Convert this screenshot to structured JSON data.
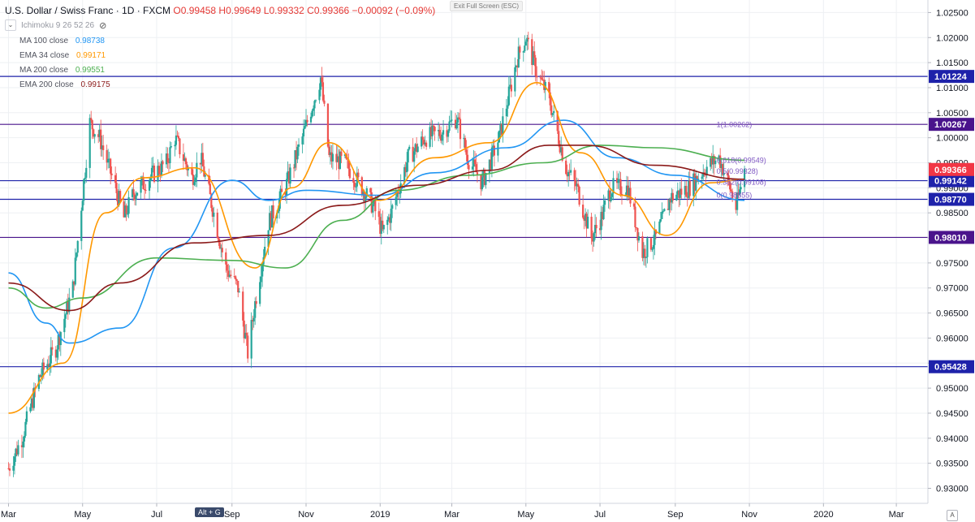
{
  "header": {
    "symbol": "U.S. Dollar / Swiss Franc · 1D · FXCM",
    "ohlc": "O0.99458 H0.99649 L0.99332 C0.99366 −0.00092 (−0.09%)"
  },
  "exit_fullscreen": "Exit Full Screen (ESC)",
  "shortcut_hint": "Alt + G",
  "auto_scale_label": "A",
  "indicators": {
    "ichimoku": {
      "label": "Ichimoku 9 26 52 26"
    },
    "ma100": {
      "label": "MA 100 close",
      "value": "0.98738",
      "color": "#2196f3"
    },
    "ema34": {
      "label": "EMA 34 close",
      "value": "0.99171",
      "color": "#ff9800"
    },
    "ma200": {
      "label": "MA 200 close",
      "value": "0.99551",
      "color": "#4caf50"
    },
    "ema200": {
      "label": "EMA 200 close",
      "value": "0.99175",
      "color": "#8b1a1a"
    }
  },
  "chart_data": {
    "type": "candlestick",
    "y_ticks": [
      0.93,
      0.935,
      0.94,
      0.945,
      0.95,
      0.955,
      0.96,
      0.965,
      0.97,
      0.975,
      0.98,
      0.985,
      0.99,
      0.995,
      1.0,
      1.005,
      1.01,
      1.015,
      1.02,
      1.025
    ],
    "y_range": [
      0.927,
      1.0275
    ],
    "x_ticks": [
      "Mar",
      "May",
      "Jul",
      "Sep",
      "Nov",
      "2019",
      "Mar",
      "May",
      "Jul",
      "Sep",
      "Nov",
      "2020",
      "Mar"
    ],
    "x_tick_dates": [
      "2018-03-01",
      "2018-05-01",
      "2018-07-01",
      "2018-09-01",
      "2018-11-01",
      "2019-01-01",
      "2019-03-01",
      "2019-05-01",
      "2019-07-01",
      "2019-09-01",
      "2019-11-01",
      "2020-01-01",
      "2020-03-01"
    ],
    "bull_color": "#26a69a",
    "bear_color": "#ef5350",
    "last_price": {
      "value": "0.99366",
      "color": "#f23645"
    },
    "horizontal_levels": [
      {
        "value": 1.01224,
        "label": "1.01224",
        "color": "#1e22aa"
      },
      {
        "value": 1.00267,
        "label": "1.00267",
        "color": "#4a148c"
      },
      {
        "value": 0.99142,
        "label": "0.99142",
        "color": "#1e22aa"
      },
      {
        "value": 0.9877,
        "label": "0.98770",
        "color": "#1e22aa"
      },
      {
        "value": 0.9801,
        "label": "0.98010",
        "color": "#4a148c"
      },
      {
        "value": 0.95428,
        "label": "0.95428",
        "color": "#1e22aa"
      }
    ],
    "fib_labels": [
      {
        "value": 1.00262,
        "text": "1(1.00262)"
      },
      {
        "value": 0.99549,
        "text": "0.618(0.99549)"
      },
      {
        "value": 0.99328,
        "text": "0.5(0.99328)"
      },
      {
        "value": 0.99108,
        "text": "0.382(0.99108)"
      },
      {
        "value": 0.98855,
        "text": "0(0.98855)"
      }
    ],
    "price_path": [
      [
        "2018-03-01",
        0.934
      ],
      [
        "2018-03-12",
        0.94
      ],
      [
        "2018-03-26",
        0.952
      ],
      [
        "2018-04-09",
        0.958
      ],
      [
        "2018-04-23",
        0.97
      ],
      [
        "2018-05-07",
        1.003
      ],
      [
        "2018-05-15",
        1.0
      ],
      [
        "2018-05-28",
        0.99
      ],
      [
        "2018-06-04",
        0.984
      ],
      [
        "2018-06-12",
        0.989
      ],
      [
        "2018-06-25",
        0.992
      ],
      [
        "2018-07-09",
        0.995
      ],
      [
        "2018-07-16",
        1.0
      ],
      [
        "2018-07-30",
        0.992
      ],
      [
        "2018-08-06",
        0.996
      ],
      [
        "2018-08-16",
        0.986
      ],
      [
        "2018-08-27",
        0.974
      ],
      [
        "2018-09-06",
        0.97
      ],
      [
        "2018-09-14",
        0.957
      ],
      [
        "2018-09-20",
        0.967
      ],
      [
        "2018-10-01",
        0.983
      ],
      [
        "2018-10-15",
        0.99
      ],
      [
        "2018-10-29",
        1.0
      ],
      [
        "2018-11-13",
        1.012
      ],
      [
        "2018-11-20",
        0.996
      ],
      [
        "2018-12-03",
        0.995
      ],
      [
        "2018-12-17",
        0.99
      ],
      [
        "2018-12-27",
        0.986
      ],
      [
        "2019-01-03",
        0.981
      ],
      [
        "2019-01-10",
        0.985
      ],
      [
        "2019-01-24",
        0.996
      ],
      [
        "2019-02-07",
        1.0
      ],
      [
        "2019-02-20",
        1.001
      ],
      [
        "2019-03-05",
        1.004
      ],
      [
        "2019-03-14",
        0.996
      ],
      [
        "2019-03-26",
        0.991
      ],
      [
        "2019-04-09",
        1.0
      ],
      [
        "2019-04-24",
        1.016
      ],
      [
        "2019-05-01",
        1.02
      ],
      [
        "2019-05-10",
        1.013
      ],
      [
        "2019-05-20",
        1.008
      ],
      [
        "2019-06-03",
        0.994
      ],
      [
        "2019-06-12",
        0.99
      ],
      [
        "2019-06-24",
        0.98
      ],
      [
        "2019-07-02",
        0.984
      ],
      [
        "2019-07-10",
        0.99
      ],
      [
        "2019-07-24",
        0.99
      ],
      [
        "2019-08-05",
        0.977
      ],
      [
        "2019-08-16",
        0.98
      ],
      [
        "2019-08-28",
        0.988
      ],
      [
        "2019-09-12",
        0.99
      ],
      [
        "2019-09-26",
        0.994
      ],
      [
        "2019-10-07",
        0.996
      ],
      [
        "2019-10-16",
        0.99
      ],
      [
        "2019-10-21",
        0.986
      ],
      [
        "2019-10-28",
        0.9937
      ]
    ],
    "ma_lines": [
      {
        "name": "MA 100 close",
        "color": "#2196f3",
        "points": [
          [
            "2018-03-01",
            0.973
          ],
          [
            "2018-04-01",
            0.963
          ],
          [
            "2018-04-20",
            0.959
          ],
          [
            "2018-06-01",
            0.962
          ],
          [
            "2018-07-15",
            0.978
          ],
          [
            "2018-09-01",
            0.9915
          ],
          [
            "2018-10-01",
            0.9875
          ],
          [
            "2018-11-01",
            0.9895
          ],
          [
            "2019-01-01",
            0.9885
          ],
          [
            "2019-02-15",
            0.993
          ],
          [
            "2019-04-15",
            0.998
          ],
          [
            "2019-06-01",
            1.0035
          ],
          [
            "2019-07-15",
            0.996
          ],
          [
            "2019-09-01",
            0.9925
          ],
          [
            "2019-10-28",
            0.9875
          ]
        ]
      },
      {
        "name": "EMA 34 close",
        "color": "#ff9800",
        "points": [
          [
            "2018-03-01",
            0.945
          ],
          [
            "2018-04-15",
            0.955
          ],
          [
            "2018-05-20",
            0.985
          ],
          [
            "2018-06-20",
            0.992
          ],
          [
            "2018-08-01",
            0.994
          ],
          [
            "2018-09-20",
            0.974
          ],
          [
            "2018-10-20",
            0.99
          ],
          [
            "2018-11-20",
            0.999
          ],
          [
            "2018-12-31",
            0.9875
          ],
          [
            "2019-02-15",
            0.996
          ],
          [
            "2019-04-01",
            0.999
          ],
          [
            "2019-05-10",
            1.011
          ],
          [
            "2019-06-15",
            0.997
          ],
          [
            "2019-07-20",
            0.9885
          ],
          [
            "2019-08-25",
            0.9805
          ],
          [
            "2019-09-30",
            0.991
          ],
          [
            "2019-10-28",
            0.9917
          ]
        ]
      },
      {
        "name": "MA 200 close",
        "color": "#4caf50",
        "points": [
          [
            "2018-03-01",
            0.97
          ],
          [
            "2018-04-01",
            0.966
          ],
          [
            "2018-05-01",
            0.968
          ],
          [
            "2018-07-01",
            0.976
          ],
          [
            "2018-09-01",
            0.9755
          ],
          [
            "2018-10-15",
            0.974
          ],
          [
            "2018-12-01",
            0.9835
          ],
          [
            "2019-01-15",
            0.9895
          ],
          [
            "2019-03-15",
            0.9925
          ],
          [
            "2019-05-15",
            0.995
          ],
          [
            "2019-07-01",
            0.9985
          ],
          [
            "2019-08-15",
            0.998
          ],
          [
            "2019-10-28",
            0.9955
          ]
        ]
      },
      {
        "name": "EMA 200 close",
        "color": "#8b1a1a",
        "points": [
          [
            "2018-03-01",
            0.971
          ],
          [
            "2018-04-20",
            0.9655
          ],
          [
            "2018-06-01",
            0.971
          ],
          [
            "2018-08-01",
            0.979
          ],
          [
            "2018-10-01",
            0.9805
          ],
          [
            "2018-12-01",
            0.9865
          ],
          [
            "2019-02-01",
            0.9905
          ],
          [
            "2019-04-01",
            0.9935
          ],
          [
            "2019-05-20",
            0.9985
          ],
          [
            "2019-06-20",
            0.9985
          ],
          [
            "2019-08-15",
            0.9945
          ],
          [
            "2019-10-28",
            0.9917
          ]
        ]
      }
    ]
  }
}
